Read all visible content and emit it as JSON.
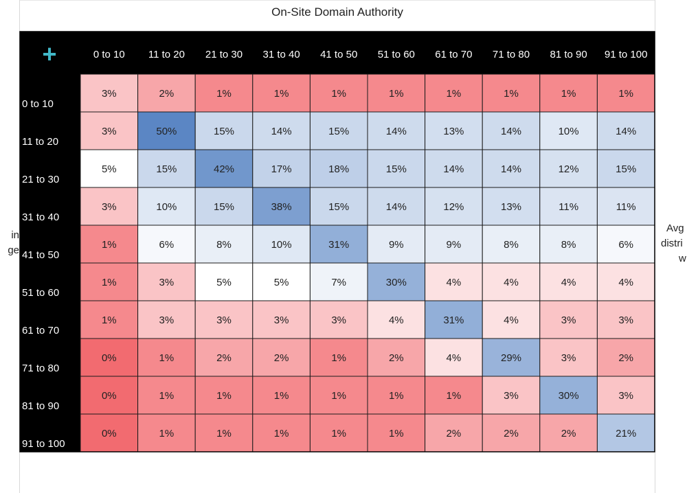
{
  "chart_data": {
    "type": "heatmap",
    "title": "On-Site Domain Authority",
    "corner_symbol": "+",
    "x_categories": [
      "0 to 10",
      "11 to 20",
      "21 to 30",
      "31 to 40",
      "41 to 50",
      "51 to 60",
      "61 to 70",
      "71 to 80",
      "81 to 90",
      "91 to 100"
    ],
    "y_categories": [
      "0 to 10",
      "11 to 20",
      "21 to 30",
      "31 to 40",
      "41 to 50",
      "51 to 60",
      "61 to 70",
      "71 to 80",
      "81 to 90",
      "91 to 100"
    ],
    "values": [
      [
        3,
        2,
        1,
        1,
        1,
        1,
        1,
        1,
        1,
        1
      ],
      [
        3,
        50,
        15,
        14,
        15,
        14,
        13,
        14,
        10,
        14
      ],
      [
        5,
        15,
        42,
        17,
        18,
        15,
        14,
        14,
        12,
        15
      ],
      [
        3,
        10,
        15,
        38,
        15,
        14,
        12,
        13,
        11,
        11
      ],
      [
        1,
        6,
        8,
        10,
        31,
        9,
        9,
        8,
        8,
        6
      ],
      [
        1,
        3,
        5,
        5,
        7,
        30,
        4,
        4,
        4,
        4
      ],
      [
        1,
        3,
        3,
        3,
        3,
        4,
        31,
        4,
        3,
        3
      ],
      [
        0,
        1,
        2,
        2,
        1,
        2,
        4,
        29,
        3,
        2
      ],
      [
        0,
        1,
        1,
        1,
        1,
        1,
        1,
        3,
        30,
        3
      ],
      [
        0,
        1,
        1,
        1,
        1,
        1,
        2,
        2,
        2,
        21
      ]
    ],
    "value_suffix": "%",
    "colors": {
      "low": "#f26b70",
      "mid": "#ffffff",
      "high": "#5b86c4",
      "header_bg": "#000000",
      "header_text": "#ffffff",
      "plus": "#41b8c8"
    },
    "left_axis_label_fragments": [
      "in",
      "ge"
    ],
    "right_axis_label_fragments": [
      "Avg",
      "distri",
      "w"
    ]
  }
}
